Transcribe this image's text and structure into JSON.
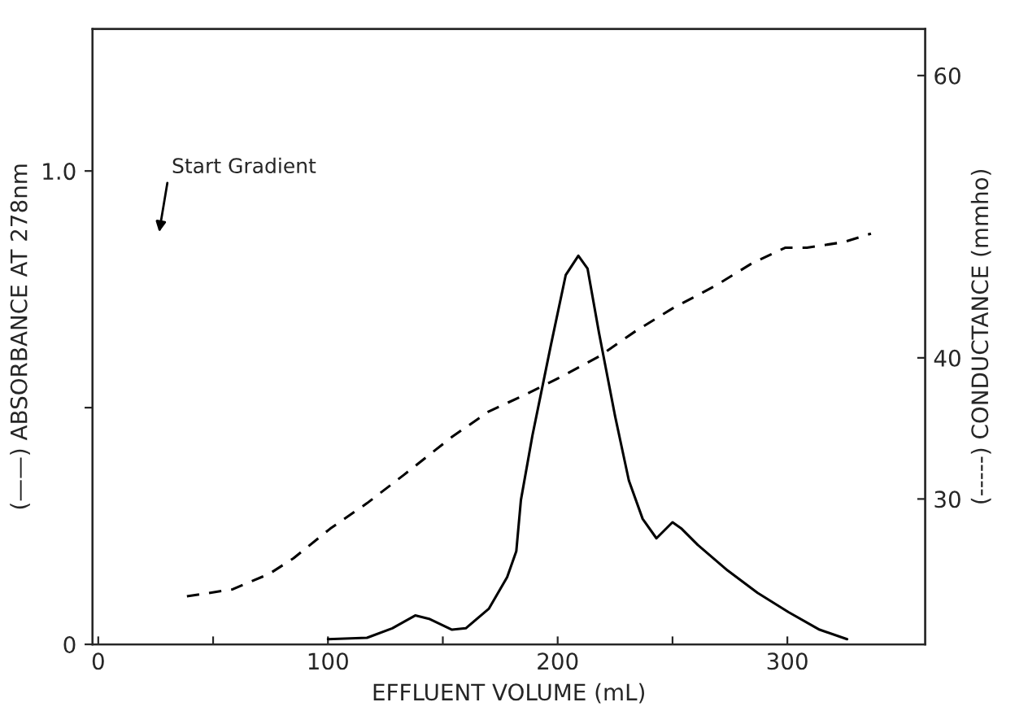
{
  "chart_data": {
    "type": "line",
    "xlabel": "EFFLUENT VOLUME (mL)",
    "ylabel": "(——) ABSORBANCE AT 278nm",
    "y2label": "(-----) CONDUCTANCE (mmho)",
    "xlim": [
      -2.5,
      360
    ],
    "xticks": [
      0,
      {
        "value": 50,
        "label": null
      },
      100,
      {
        "value": 150,
        "label": null
      },
      200,
      {
        "value": 250,
        "label": null
      },
      300
    ],
    "ylim": [
      0,
      1.3
    ],
    "yticks": [
      0,
      {
        "value": 0.5,
        "label": null
      },
      {
        "value": 1.0,
        "label": "1.0"
      }
    ],
    "y2lim": [
      19.7,
      63.3
    ],
    "y2ticks": [
      30,
      40,
      60
    ],
    "grid": false,
    "series": [
      {
        "color": "#000000",
        "line_style": "solid",
        "x": [
          100,
          117,
          128,
          138,
          144,
          154,
          160,
          170,
          178,
          182,
          184,
          189,
          197,
          203.5,
          209,
          213,
          218,
          225,
          231,
          237,
          243,
          250,
          254,
          261,
          274,
          287,
          300.5,
          314,
          326
        ],
        "values": [
          0.011,
          0.014,
          0.034,
          0.061,
          0.054,
          0.031,
          0.034,
          0.075,
          0.142,
          0.197,
          0.305,
          0.441,
          0.631,
          0.78,
          0.821,
          0.794,
          0.658,
          0.482,
          0.346,
          0.265,
          0.224,
          0.258,
          0.244,
          0.21,
          0.156,
          0.109,
          0.068,
          0.031,
          0.011
        ]
      },
      {
        "color": "#000000",
        "line_style": "dashed",
        "axis": "y2",
        "x": [
          38.6,
          58.5,
          74.5,
          85,
          101,
          117,
          133,
          154,
          170,
          186,
          202,
          218,
          234,
          250,
          268.6,
          284.6,
          299,
          308.5,
          324.5,
          336.4
        ],
        "values": [
          23.1,
          23.6,
          24.7,
          25.8,
          27.9,
          29.7,
          31.7,
          34.4,
          36.2,
          37.4,
          38.7,
          40.1,
          41.9,
          43.5,
          45.1,
          46.7,
          47.8,
          47.8,
          48.2,
          48.8
        ]
      }
    ],
    "annotations": [
      "Start Gradient"
    ]
  }
}
